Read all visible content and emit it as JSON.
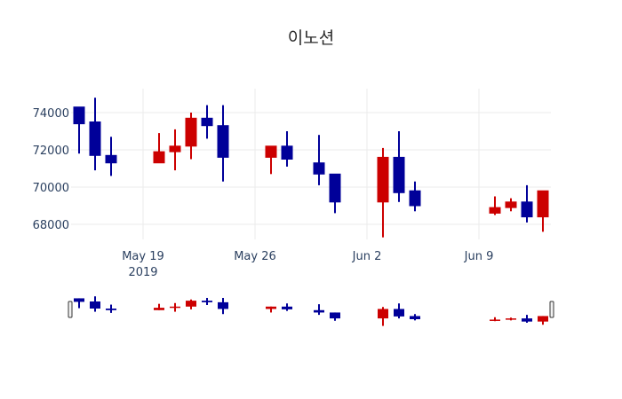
{
  "chart_data": {
    "type": "candlestick",
    "title": "이노션",
    "xlabel": "",
    "ylabel": "",
    "ylim": [
      67200,
      75300
    ],
    "yticks": [
      68000,
      70000,
      72000,
      74000
    ],
    "xticks": [
      {
        "date": "2019-05-19",
        "label": "May 19",
        "sublabel": "2019"
      },
      {
        "date": "2019-05-26",
        "label": "May 26",
        "sublabel": ""
      },
      {
        "date": "2019-06-02",
        "label": "Jun 2",
        "sublabel": ""
      },
      {
        "date": "2019-06-09",
        "label": "Jun 9",
        "sublabel": ""
      }
    ],
    "increasing_color": "#cc0000",
    "decreasing_color": "#000099",
    "grid": true,
    "rangeslider": true,
    "series": [
      {
        "date": "2019-05-15",
        "open": 74300,
        "high": 74300,
        "low": 71800,
        "close": 73400
      },
      {
        "date": "2019-05-16",
        "open": 73500,
        "high": 74800,
        "low": 70900,
        "close": 71700
      },
      {
        "date": "2019-05-17",
        "open": 71700,
        "high": 72700,
        "low": 70600,
        "close": 71300
      },
      {
        "date": "2019-05-20",
        "open": 71300,
        "high": 72900,
        "low": 71300,
        "close": 71900
      },
      {
        "date": "2019-05-21",
        "open": 71900,
        "high": 73100,
        "low": 70900,
        "close": 72200
      },
      {
        "date": "2019-05-22",
        "open": 72200,
        "high": 74000,
        "low": 71500,
        "close": 73700
      },
      {
        "date": "2019-05-23",
        "open": 73700,
        "high": 74400,
        "low": 72600,
        "close": 73300
      },
      {
        "date": "2019-05-24",
        "open": 73300,
        "high": 74400,
        "low": 70300,
        "close": 71600
      },
      {
        "date": "2019-05-27",
        "open": 71600,
        "high": 72200,
        "low": 70700,
        "close": 72200
      },
      {
        "date": "2019-05-28",
        "open": 72200,
        "high": 73000,
        "low": 71100,
        "close": 71500
      },
      {
        "date": "2019-05-30",
        "open": 71300,
        "high": 72800,
        "low": 70100,
        "close": 70700
      },
      {
        "date": "2019-05-31",
        "open": 70700,
        "high": 70700,
        "low": 68600,
        "close": 69200
      },
      {
        "date": "2019-06-03",
        "open": 69200,
        "high": 72100,
        "low": 67300,
        "close": 71600
      },
      {
        "date": "2019-06-04",
        "open": 71600,
        "high": 73000,
        "low": 69200,
        "close": 69700
      },
      {
        "date": "2019-06-05",
        "open": 69800,
        "high": 70300,
        "low": 68700,
        "close": 69000
      },
      {
        "date": "2019-06-10",
        "open": 68600,
        "high": 69500,
        "low": 68500,
        "close": 68900
      },
      {
        "date": "2019-06-11",
        "open": 68900,
        "high": 69400,
        "low": 68700,
        "close": 69200
      },
      {
        "date": "2019-06-12",
        "open": 69200,
        "high": 70100,
        "low": 68100,
        "close": 68400
      },
      {
        "date": "2019-06-13",
        "open": 68400,
        "high": 69800,
        "low": 67600,
        "close": 69800
      }
    ]
  }
}
